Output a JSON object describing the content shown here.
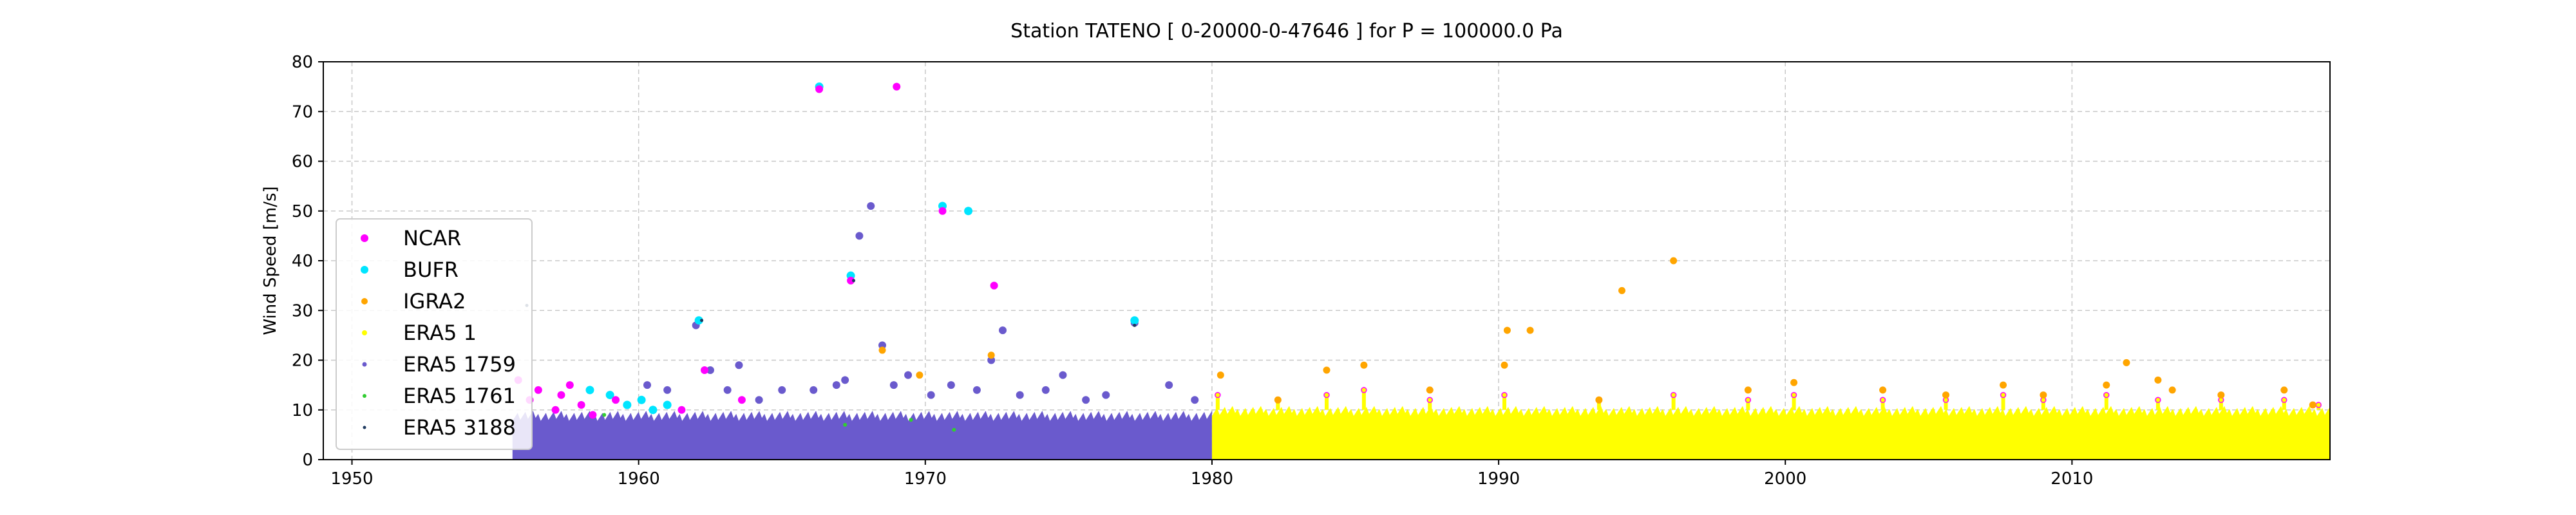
{
  "chart_data": {
    "type": "scatter",
    "title": "Station  TATENO [ 0-20000-0-47646 ]  for P = 100000.0 Pa",
    "xlabel": "",
    "ylabel": "Wind Speed [m/s]",
    "xlim": [
      1949.0,
      2019.0
    ],
    "ylim": [
      0,
      80
    ],
    "xticks": [
      1950,
      1960,
      1970,
      1980,
      1990,
      2000,
      2010
    ],
    "yticks": [
      0,
      10,
      20,
      30,
      40,
      50,
      60,
      70,
      80
    ],
    "grid": true,
    "legend_position": "lower-left",
    "series": [
      {
        "name": "NCAR",
        "color": "#ff00ff",
        "points": [
          [
            1955.8,
            16
          ],
          [
            1956.2,
            12
          ],
          [
            1956.5,
            14
          ],
          [
            1957.1,
            10
          ],
          [
            1957.3,
            13
          ],
          [
            1957.6,
            15
          ],
          [
            1958.0,
            11
          ],
          [
            1958.4,
            9
          ],
          [
            1959.2,
            12
          ],
          [
            1961.5,
            10
          ],
          [
            1962.3,
            18
          ],
          [
            1963.6,
            12
          ],
          [
            1966.3,
            74.5
          ],
          [
            1967.4,
            36
          ],
          [
            1969.0,
            75
          ],
          [
            1970.6,
            50
          ],
          [
            1972.4,
            35
          ]
        ]
      },
      {
        "name": "BUFR",
        "color": "#00e5ff",
        "points": [
          [
            1958.3,
            14
          ],
          [
            1959.0,
            13
          ],
          [
            1959.6,
            11
          ],
          [
            1960.1,
            12
          ],
          [
            1960.5,
            10
          ],
          [
            1961.0,
            11
          ],
          [
            1962.1,
            28
          ],
          [
            1966.3,
            75
          ],
          [
            1967.4,
            37
          ],
          [
            1970.6,
            51
          ],
          [
            1971.5,
            50
          ],
          [
            1977.3,
            28
          ]
        ]
      },
      {
        "name": "IGRA2",
        "color": "#ffa500",
        "points": [
          [
            1968.5,
            22
          ],
          [
            1969.8,
            17
          ],
          [
            1972.3,
            21
          ],
          [
            1980.3,
            17
          ],
          [
            1982.3,
            12
          ],
          [
            1984.0,
            18
          ],
          [
            1985.3,
            19
          ],
          [
            1987.6,
            14
          ],
          [
            1990.2,
            19
          ],
          [
            1990.3,
            26
          ],
          [
            1991.1,
            26
          ],
          [
            1993.5,
            12
          ],
          [
            1994.3,
            34
          ],
          [
            1996.1,
            40
          ],
          [
            1998.7,
            14
          ],
          [
            2000.3,
            15.5
          ],
          [
            2003.4,
            14
          ],
          [
            2005.6,
            13
          ],
          [
            2007.6,
            15
          ],
          [
            2009.0,
            13
          ],
          [
            2011.2,
            15
          ],
          [
            2011.9,
            19.5
          ],
          [
            2013.0,
            16
          ],
          [
            2013.5,
            14
          ],
          [
            2015.2,
            13
          ],
          [
            2017.4,
            14
          ],
          [
            2018.4,
            11
          ]
        ]
      },
      {
        "name": "ERA5 1",
        "color": "#ffff00",
        "x_range": [
          1980.0,
          2019.0
        ],
        "typical_max": 10,
        "peaks": [
          [
            1980.2,
            13
          ],
          [
            1982.3,
            12
          ],
          [
            1984.0,
            13
          ],
          [
            1985.3,
            14
          ],
          [
            1987.6,
            12
          ],
          [
            1990.2,
            13
          ],
          [
            1993.5,
            12
          ],
          [
            1996.1,
            13
          ],
          [
            1998.7,
            12
          ],
          [
            2000.3,
            13
          ],
          [
            2003.4,
            12
          ],
          [
            2005.6,
            12
          ],
          [
            2007.6,
            13
          ],
          [
            2009.0,
            12
          ],
          [
            2011.2,
            13
          ],
          [
            2013.0,
            12
          ],
          [
            2015.2,
            12
          ],
          [
            2017.4,
            12
          ],
          [
            2018.6,
            11
          ]
        ]
      },
      {
        "name": "ERA5 1759",
        "color": "#6a5acd",
        "x_range": [
          1955.6,
          1980.0
        ],
        "typical_max": 9,
        "points": [
          [
            1960.3,
            15
          ],
          [
            1961.0,
            14
          ],
          [
            1962.0,
            27
          ],
          [
            1962.5,
            18
          ],
          [
            1963.1,
            14
          ],
          [
            1963.5,
            19
          ],
          [
            1964.2,
            12
          ],
          [
            1965.0,
            14
          ],
          [
            1966.1,
            14
          ],
          [
            1966.9,
            15
          ],
          [
            1967.2,
            16
          ],
          [
            1967.7,
            45
          ],
          [
            1968.1,
            51
          ],
          [
            1968.5,
            23
          ],
          [
            1968.9,
            15
          ],
          [
            1969.4,
            17
          ],
          [
            1970.2,
            13
          ],
          [
            1970.9,
            15
          ],
          [
            1971.8,
            14
          ],
          [
            1972.3,
            20
          ],
          [
            1972.7,
            26
          ],
          [
            1973.3,
            13
          ],
          [
            1974.2,
            14
          ],
          [
            1974.8,
            17
          ],
          [
            1975.6,
            12
          ],
          [
            1976.3,
            13
          ],
          [
            1977.3,
            27.5
          ],
          [
            1978.5,
            15
          ],
          [
            1979.4,
            12
          ]
        ]
      },
      {
        "name": "ERA5 1761",
        "color": "#32cd32",
        "points": [
          [
            1958.8,
            9
          ],
          [
            1967.2,
            7
          ],
          [
            1969.5,
            8
          ],
          [
            1971.0,
            6
          ]
        ]
      },
      {
        "name": "ERA5 3188",
        "color": "#1e3a5f",
        "points": [
          [
            1956.1,
            31
          ],
          [
            1962.2,
            28
          ],
          [
            1967.5,
            36
          ],
          [
            1977.3,
            27
          ]
        ]
      }
    ]
  }
}
